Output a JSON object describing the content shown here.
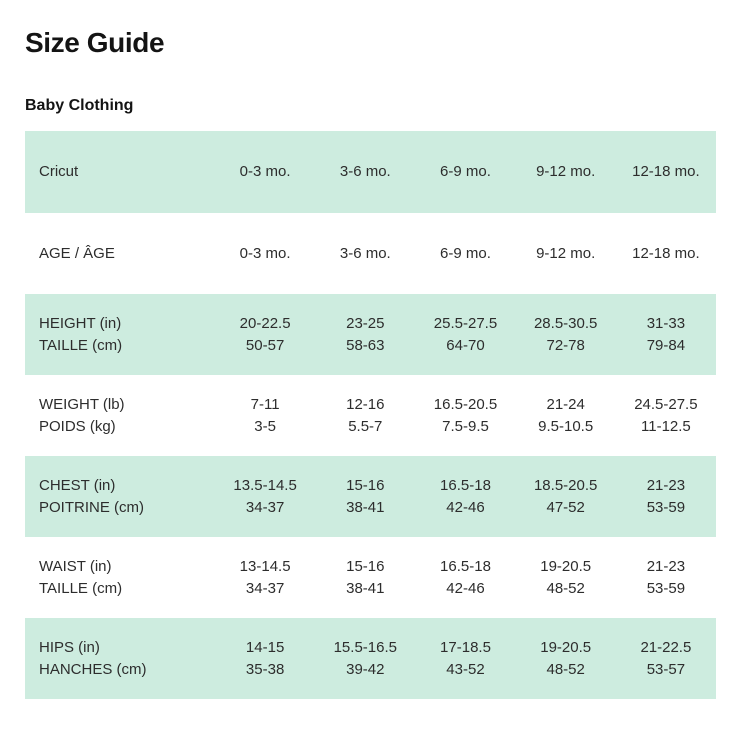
{
  "page": {
    "title": "Size Guide",
    "subtitle": "Baby Clothing"
  },
  "colors": {
    "row_highlight": "#cdecdf",
    "background": "#ffffff",
    "text": "#2d2d2d",
    "heading_text": "#141414"
  },
  "table": {
    "rows": [
      {
        "label": [
          "Cricut"
        ],
        "cells": [
          [
            "0-3 mo."
          ],
          [
            "3-6 mo."
          ],
          [
            "6-9 mo."
          ],
          [
            "9-12 mo."
          ],
          [
            "12-18 mo."
          ]
        ]
      },
      {
        "label": [
          "AGE / ÂGE"
        ],
        "cells": [
          [
            "0-3 mo."
          ],
          [
            "3-6 mo."
          ],
          [
            "6-9 mo."
          ],
          [
            "9-12 mo."
          ],
          [
            "12-18 mo."
          ]
        ]
      },
      {
        "label": [
          "HEIGHT (in)",
          "TAILLE (cm)"
        ],
        "cells": [
          [
            "20-22.5",
            "50-57"
          ],
          [
            "23-25",
            "58-63"
          ],
          [
            "25.5-27.5",
            "64-70"
          ],
          [
            "28.5-30.5",
            "72-78"
          ],
          [
            "31-33",
            "79-84"
          ]
        ]
      },
      {
        "label": [
          "WEIGHT (lb)",
          "POIDS (kg)"
        ],
        "cells": [
          [
            "7-11",
            "3-5"
          ],
          [
            "12-16",
            "5.5-7"
          ],
          [
            "16.5-20.5",
            "7.5-9.5"
          ],
          [
            "21-24",
            "9.5-10.5"
          ],
          [
            "24.5-27.5",
            "11-12.5"
          ]
        ]
      },
      {
        "label": [
          "CHEST (in)",
          "POITRINE (cm)"
        ],
        "cells": [
          [
            "13.5-14.5",
            "34-37"
          ],
          [
            "15-16",
            "38-41"
          ],
          [
            "16.5-18",
            "42-46"
          ],
          [
            "18.5-20.5",
            "47-52"
          ],
          [
            "21-23",
            "53-59"
          ]
        ]
      },
      {
        "label": [
          "WAIST (in)",
          "TAILLE (cm)"
        ],
        "cells": [
          [
            "13-14.5",
            "34-37"
          ],
          [
            "15-16",
            "38-41"
          ],
          [
            "16.5-18",
            "42-46"
          ],
          [
            "19-20.5",
            "48-52"
          ],
          [
            "21-23",
            "53-59"
          ]
        ]
      },
      {
        "label": [
          "HIPS (in)",
          "HANCHES (cm)"
        ],
        "cells": [
          [
            "14-15",
            "35-38"
          ],
          [
            "15.5-16.5",
            "39-42"
          ],
          [
            "17-18.5",
            "43-52"
          ],
          [
            "19-20.5",
            "48-52"
          ],
          [
            "21-22.5",
            "53-57"
          ]
        ]
      }
    ]
  }
}
